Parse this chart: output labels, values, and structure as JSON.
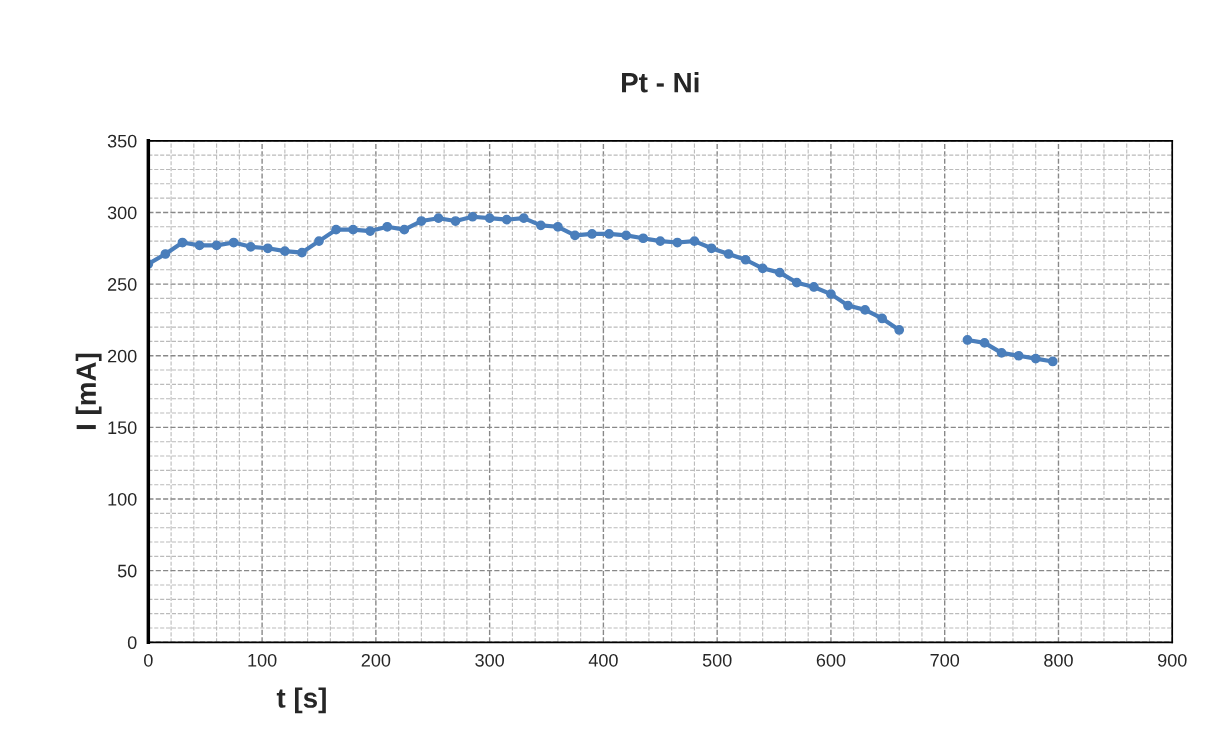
{
  "chart_data": {
    "type": "line",
    "title": "Pt - Ni",
    "xlabel": "t [s]",
    "ylabel": "I [mA]",
    "x": [
      0,
      15,
      30,
      45,
      60,
      75,
      90,
      105,
      120,
      135,
      150,
      165,
      180,
      195,
      210,
      225,
      240,
      255,
      270,
      285,
      300,
      315,
      330,
      345,
      360,
      375,
      390,
      405,
      420,
      435,
      450,
      465,
      480,
      495,
      510,
      525,
      540,
      555,
      570,
      585,
      600,
      615,
      630,
      645,
      660,
      690,
      720,
      735,
      750,
      765,
      780,
      795
    ],
    "series": [
      {
        "color": "#4a7ebb",
        "values": [
          264,
          271,
          279,
          277,
          277,
          279,
          276,
          275,
          273,
          272,
          280,
          288,
          288,
          287,
          290,
          288,
          294,
          296,
          294,
          297,
          296,
          295,
          296,
          291,
          290,
          284,
          285,
          285,
          284,
          282,
          280,
          279,
          280,
          275,
          271,
          267,
          261,
          258,
          251,
          248,
          243,
          235,
          232,
          226,
          218,
          null,
          211,
          209,
          202,
          200,
          198,
          196
        ]
      }
    ],
    "xlim": [
      0,
      900
    ],
    "xticks": [
      0,
      100,
      200,
      300,
      400,
      500,
      600,
      700,
      800,
      900
    ],
    "ylim": [
      0,
      350
    ],
    "yticks": [
      0,
      50,
      100,
      150,
      200,
      250,
      300,
      350
    ],
    "grid": true,
    "marker": "circle",
    "line_style": "solid",
    "legend": false
  }
}
